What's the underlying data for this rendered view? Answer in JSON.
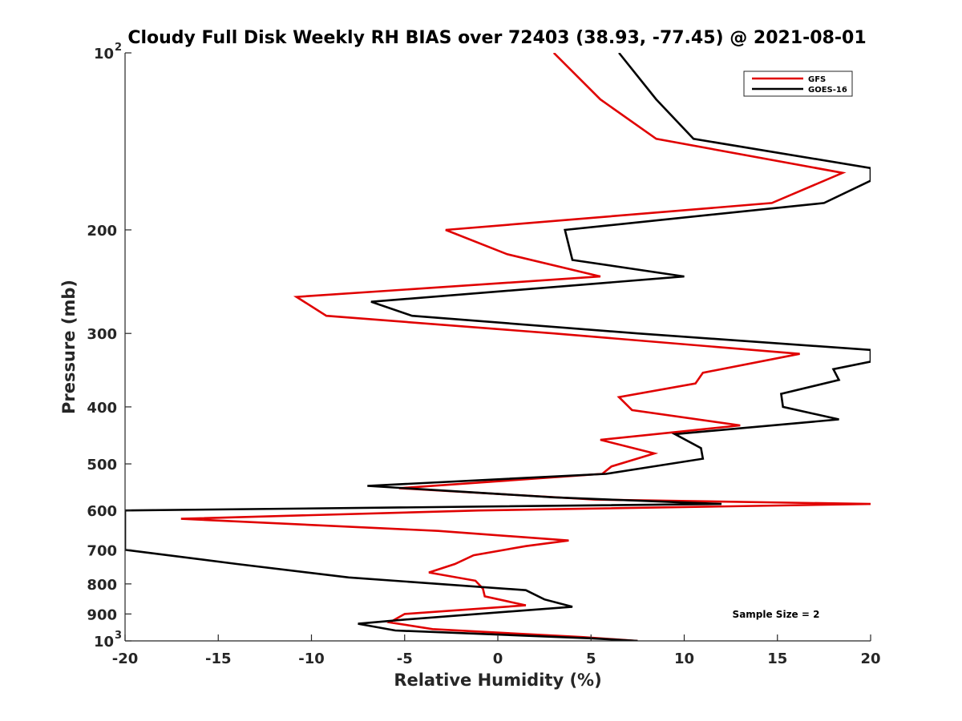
{
  "chart_data": {
    "type": "line",
    "title": "Cloudy Full Disk Weekly RH BIAS over 72403 (38.93, -77.45) @ 2021-08-01",
    "xlabel": "Relative Humidity (%)",
    "ylabel": "Pressure (mb)",
    "xlim": [
      -20,
      20
    ],
    "ylim": [
      100,
      1000
    ],
    "y_scale": "log",
    "y_reversed": true,
    "grid": false,
    "legend_position": "top-right",
    "x_ticks": [
      "-20",
      "-15",
      "-10",
      "-5",
      "0",
      "5",
      "10",
      "15",
      "20"
    ],
    "y_ticks": [
      {
        "base": "10",
        "exp": "2",
        "value": 100
      },
      {
        "base": "200",
        "exp": "",
        "value": 200
      },
      {
        "base": "300",
        "exp": "",
        "value": 300
      },
      {
        "base": "400",
        "exp": "",
        "value": 400
      },
      {
        "base": "500",
        "exp": "",
        "value": 500
      },
      {
        "base": "600",
        "exp": "",
        "value": 600
      },
      {
        "base": "700",
        "exp": "",
        "value": 700
      },
      {
        "base": "800",
        "exp": "",
        "value": 800
      },
      {
        "base": "900",
        "exp": "",
        "value": 900
      },
      {
        "base": "10",
        "exp": "3",
        "value": 1000
      }
    ],
    "series": [
      {
        "name": "GFS",
        "color": "#e00000",
        "points": [
          [
            3.0,
            100
          ],
          [
            5.5,
            120
          ],
          [
            8.5,
            140
          ],
          [
            18.5,
            160
          ],
          [
            14.7,
            180
          ],
          [
            -2.8,
            200
          ],
          [
            0.5,
            220
          ],
          [
            5.5,
            240
          ],
          [
            -10.8,
            260
          ],
          [
            -9.2,
            280
          ],
          [
            3.0,
            300
          ],
          [
            16.2,
            325
          ],
          [
            11.0,
            350
          ],
          [
            10.6,
            365
          ],
          [
            6.5,
            385
          ],
          [
            7.2,
            405
          ],
          [
            13.0,
            430
          ],
          [
            5.5,
            455
          ],
          [
            8.4,
            480
          ],
          [
            6.1,
            505
          ],
          [
            5.6,
            520
          ],
          [
            -5.3,
            550
          ],
          [
            5.2,
            575
          ],
          [
            20.0,
            585
          ],
          [
            -1.0,
            600
          ],
          [
            -17.0,
            620
          ],
          [
            -3.2,
            650
          ],
          [
            3.8,
            675
          ],
          [
            1.5,
            690
          ],
          [
            -1.3,
            715
          ],
          [
            -2.3,
            740
          ],
          [
            -3.7,
            765
          ],
          [
            -1.2,
            790
          ],
          [
            -0.8,
            815
          ],
          [
            -0.7,
            840
          ],
          [
            1.5,
            870
          ],
          [
            -5.0,
            900
          ],
          [
            -5.8,
            930
          ],
          [
            -3.5,
            955
          ],
          [
            4.5,
            985
          ],
          [
            7.5,
            1000
          ]
        ]
      },
      {
        "name": "GOES-16",
        "color": "#000000",
        "points": [
          [
            6.5,
            100
          ],
          [
            8.5,
            120
          ],
          [
            10.5,
            140
          ],
          [
            20.0,
            157
          ],
          [
            20.0,
            165
          ],
          [
            17.5,
            180
          ],
          [
            3.6,
            200
          ],
          [
            4.0,
            225
          ],
          [
            10.0,
            240
          ],
          [
            -6.8,
            265
          ],
          [
            -4.6,
            280
          ],
          [
            7.5,
            300
          ],
          [
            20.0,
            320
          ],
          [
            20.0,
            335
          ],
          [
            18.0,
            345
          ],
          [
            18.3,
            360
          ],
          [
            15.2,
            380
          ],
          [
            15.3,
            400
          ],
          [
            18.3,
            420
          ],
          [
            9.5,
            445
          ],
          [
            10.9,
            470
          ],
          [
            11.0,
            490
          ],
          [
            5.8,
            520
          ],
          [
            -7.0,
            545
          ],
          [
            3.0,
            570
          ],
          [
            12.0,
            585
          ],
          [
            -20.0,
            600
          ],
          [
            -20.0,
            700
          ],
          [
            -14.0,
            740
          ],
          [
            -8.0,
            780
          ],
          [
            1.5,
            820
          ],
          [
            2.5,
            850
          ],
          [
            4.0,
            875
          ],
          [
            -5.0,
            920
          ],
          [
            -7.5,
            935
          ],
          [
            -5.5,
            960
          ],
          [
            5.0,
            990
          ],
          [
            7.5,
            1000
          ]
        ]
      }
    ],
    "legend": [
      {
        "label": "GFS",
        "color": "#e00000"
      },
      {
        "label": "GOES-16",
        "color": "#000000"
      }
    ],
    "annotation": "Sample Size = 2"
  }
}
